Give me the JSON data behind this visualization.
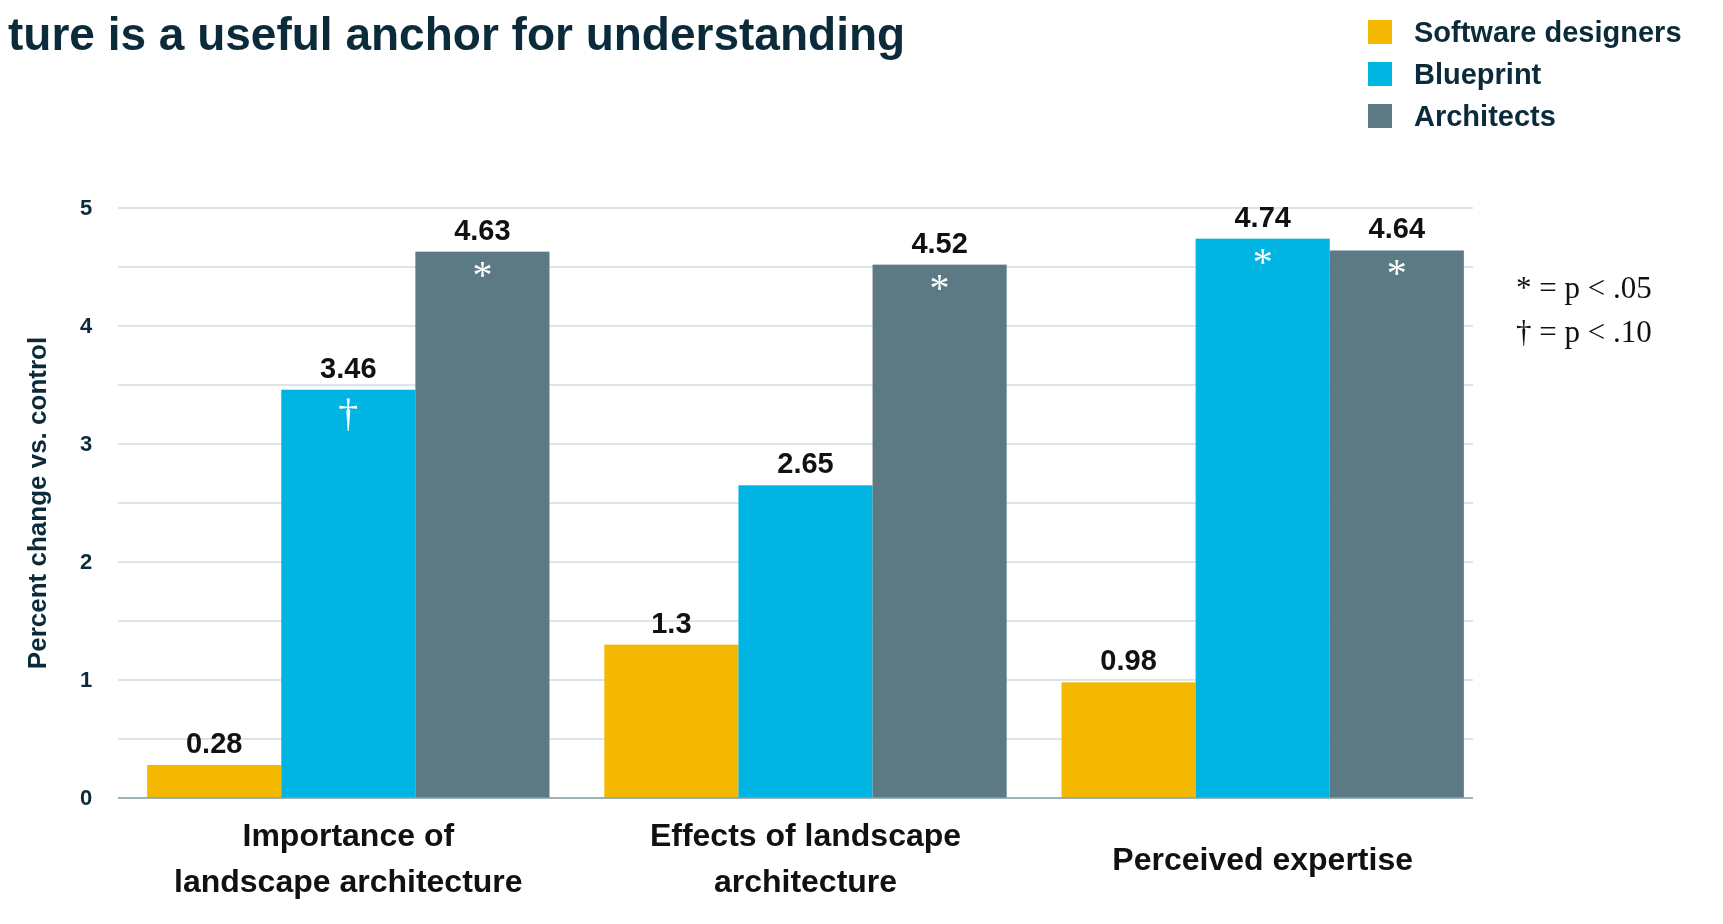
{
  "chart_data": {
    "type": "bar",
    "title": "ture is a useful anchor for understanding",
    "ylabel": "Percent change vs. control",
    "categories": [
      "Importance of landscape architecture",
      "Effects of landscape architecture",
      "Perceived expertise"
    ],
    "series": [
      {
        "name": "Software designers",
        "color": "#f5b800",
        "values": [
          0.28,
          1.3,
          0.98
        ]
      },
      {
        "name": "Blueprint",
        "color": "#00b5e2",
        "values": [
          3.46,
          2.65,
          4.74
        ]
      },
      {
        "name": "Architects",
        "color": "#5b7a83",
        "values": [
          4.63,
          4.52,
          4.64
        ]
      }
    ],
    "ylim": [
      0,
      5
    ],
    "yticks": [
      0,
      {
        "value": 0.5,
        "label": null
      },
      1,
      {
        "value": 1.5,
        "label": null
      },
      2,
      {
        "value": 2.5,
        "label": null
      },
      3,
      {
        "value": 3.5,
        "label": null
      },
      4,
      {
        "value": 4.5,
        "label": null
      },
      5
    ],
    "grid": "y",
    "legend": "top right",
    "data_labels": true,
    "annotations": [
      "†",
      "*",
      "*",
      "*",
      "*",
      "* = p < .05",
      "† = p < .10"
    ]
  }
}
